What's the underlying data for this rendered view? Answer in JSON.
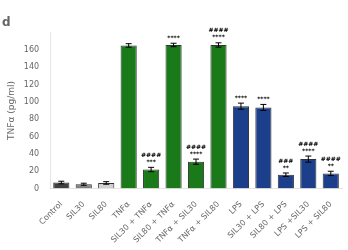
{
  "chart_data": {
    "type": "bar",
    "title": "d",
    "ylabel": "TNFα (pg/ml)",
    "categories": [
      "Control",
      "SIL30",
      "SIL80",
      "TNFα",
      "SIL30 + TNFα",
      "SIL80 + TNFα",
      "TNFα + SIL30",
      "TNFα + SIL80",
      "LPS",
      "SIL30 + LPS",
      "SIL80 + LPS",
      "LPS +SIL30",
      "LPS + SIL80"
    ],
    "values": [
      7.0,
      5.0,
      6.5,
      165.0,
      22.0,
      165.5,
      31.0,
      165.5,
      95.0,
      93.5,
      16.0,
      34.0,
      17.5
    ],
    "errors": [
      1.5,
      1.2,
      1.5,
      2.0,
      2.5,
      2.0,
      3.0,
      2.5,
      3.5,
      3.5,
      2.0,
      3.5,
      2.5
    ],
    "colors": [
      "#404040",
      "#808080",
      "#d0d0d0",
      "#1a7a1a",
      "#1a7a1a",
      "#1a7a1a",
      "#1a7a1a",
      "#1a7a1a",
      "#1c3f8c",
      "#1c3f8c",
      "#1c3f8c",
      "#1c3f8c",
      "#1c3f8c"
    ],
    "annotations": [
      null,
      null,
      null,
      null,
      "***\n####",
      "****",
      "****\n####",
      "****\n####",
      "****",
      "****",
      "**\n###",
      "****\n####",
      "**\n####"
    ],
    "ylim": [
      0,
      180
    ],
    "yticks": [
      0,
      20,
      40,
      60,
      80,
      100,
      120,
      140,
      160
    ],
    "grid": false
  }
}
